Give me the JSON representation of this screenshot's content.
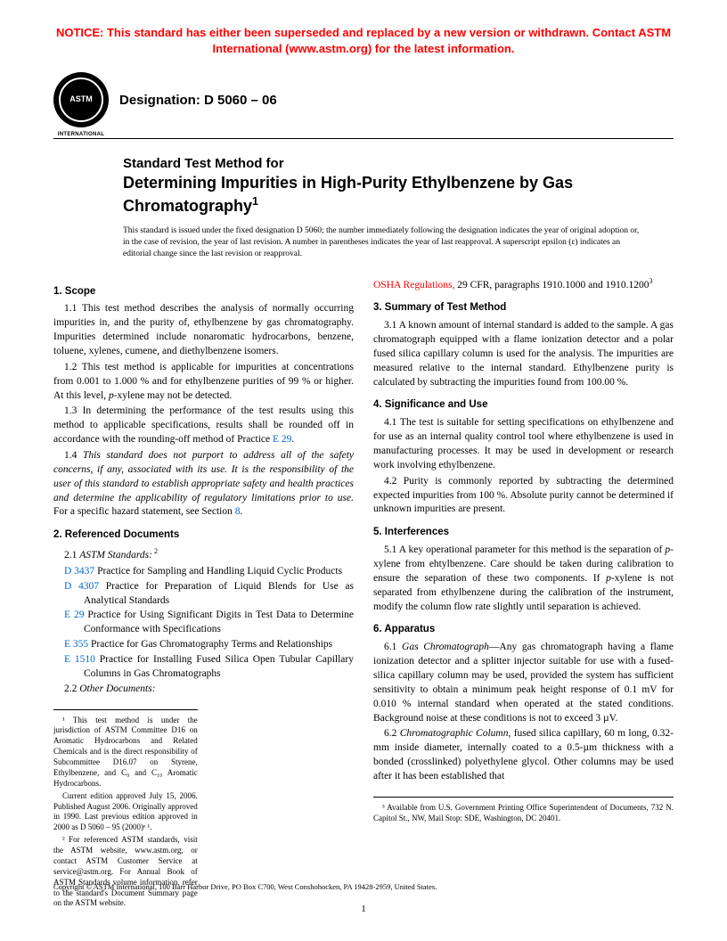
{
  "notice": "NOTICE: This standard has either been superseded and replaced by a new version or withdrawn. Contact ASTM International (www.astm.org) for the latest information.",
  "logo": {
    "top": "ASTM",
    "bottom": "INTERNATIONAL"
  },
  "designation": "Designation: D 5060 – 06",
  "title1": "Standard Test Method for",
  "title2": "Determining Impurities in High-Purity Ethylbenzene by Gas Chromatography",
  "title_sup": "1",
  "issuance": "This standard is issued under the fixed designation D 5060; the number immediately following the designation indicates the year of original adoption or, in the case of revision, the year of last revision. A number in parentheses indicates the year of last reapproval. A superscript epsilon (ε) indicates an editorial change since the last revision or reapproval.",
  "s1": {
    "head": "1. Scope",
    "p1": "1.1 This test method describes the analysis of normally occurring impurities in, and the purity of, ethylbenzene by gas chromatography. Impurities determined include nonaromatic hydrocarbons, benzene, toluene, xylenes, cumene, and diethylbenzene isomers.",
    "p2a": "1.2 This test method is applicable for impurities at concentrations from 0.001 to 1.000 % and for ethylbenzene purities of 99 % or higher. At this level, ",
    "p2i": "p",
    "p2b": "-xylene may not be detected.",
    "p3a": "1.3 In determining the performance of the test results using this method to applicable specifications, results shall be rounded off in accordance with the rounding-off method of Practice ",
    "p3link": "E 29",
    "p3b": ".",
    "p4a": "1.4 ",
    "p4i": "This standard does not purport to address all of the safety concerns, if any, associated with its use. It is the responsibility of the user of this standard to establish appropriate safety and health practices and determine the applicability of regulatory limitations prior to use.",
    "p4b": " For a specific hazard statement, see Section ",
    "p4link": "8",
    "p4c": "."
  },
  "s2": {
    "head": "2. Referenced Documents",
    "p1a": "2.1 ",
    "p1i": "ASTM Standards:",
    "p1sup": " 2",
    "refs": [
      {
        "code": "D 3437",
        "text": " Practice for Sampling and Handling Liquid Cyclic Products"
      },
      {
        "code": "D 4307",
        "text": " Practice for Preparation of Liquid Blends for Use as Analytical Standards"
      },
      {
        "code": "E 29",
        "text": " Practice for Using Significant Digits in Test Data to Determine Conformance with Specifications"
      },
      {
        "code": "E 355",
        "text": " Practice for Gas Chromatography Terms and Relationships"
      },
      {
        "code": "E 1510",
        "text": " Practice for Installing Fused Silica Open Tubular Capillary Columns in Gas Chromatographs"
      }
    ],
    "p2a": "2.2 ",
    "p2i": "Other Documents:"
  },
  "osha": {
    "link": "OSHA Regulations,",
    "rest": " 29 CFR, paragraphs 1910.1000 and 1910.1200",
    "sup": "3"
  },
  "s3": {
    "head": "3. Summary of Test Method",
    "p1": "3.1 A known amount of internal standard is added to the sample. A gas chromatograph equipped with a flame ionization detector and a polar fused silica capillary column is used for the analysis. The impurities are measured relative to the internal standard. Ethylbenzene purity is calculated by subtracting the impurities found from 100.00 %."
  },
  "s4": {
    "head": "4. Significance and Use",
    "p1": "4.1 The test is suitable for setting specifications on ethylbenzene and for use as an internal quality control tool where ethylbenzene is used in manufacturing processes. It may be used in development or research work involving ethylbenzene.",
    "p2": "4.2 Purity is commonly reported by subtracting the determined expected impurities from 100 %. Absolute purity cannot be determined if unknown impurities are present."
  },
  "s5": {
    "head": "5. Interferences",
    "p1a": "5.1 A key operational parameter for this method is the separation of ",
    "p1i1": "p",
    "p1b": "-xylene from ehtylbenzene. Care should be taken during calibration to ensure the separation of these two components. If ",
    "p1i2": "p",
    "p1c": "-xylene is not separated from ethylbenzene during the calibration of the instrument, modify the column flow rate slightly until separation is achieved."
  },
  "s6": {
    "head": "6. Apparatus",
    "p1a": "6.1 ",
    "p1i": "Gas Chromatograph",
    "p1b": "—Any gas chromatograph having a flame ionization detector and a splitter injector suitable for use with a fused-silica capillary column may be used, provided the system has sufficient sensitivity to obtain a minimum peak height response of 0.1 mV for 0.010 % internal standard when operated at the stated conditions. Background noise at these conditions is not to exceed 3 µV.",
    "p2a": "6.2 ",
    "p2i": "Chromatographic Column",
    "p2b": ", fused silica capillary, 60 m long, 0.32-mm inside diameter, internally coated to a 0.5-µm thickness with a bonded (crosslinked) polyethylene glycol. Other columns may be used after it has been established that"
  },
  "fn_left": [
    "¹ This test method is under the jurisdiction of ASTM Committee D16 on Aromatic Hydrocarbons and Related Chemicals and is the direct responsibility of Subcommittee D16.07 on Styrene, Ethylbenzene, and C₉ and C₁₀ Aromatic Hydrocarbons.",
    "Current edition approved July 15, 2006. Published August 2006. Originally approved in 1990. Last previous edition approved in 2000 as D 5060 – 95 (2000)ᵉ ¹.",
    "² For referenced ASTM standards, visit the ASTM website, www.astm.org, or contact ASTM Customer Service at service@astm.org. For Annual Book of ASTM Standards volume information, refer to the standard's Document Summary page on the ASTM website."
  ],
  "fn_right": "³ Available from U.S. Government Printing Office Superintendent of Documents, 732 N. Capitol St., NW, Mail Stop: SDE, Washington, DC 20401.",
  "copyright": "Copyright © ASTM International, 100 Barr Harbor Drive, PO Box C700, West Conshohocken, PA 19428-2959, United States.",
  "pagenum": "1"
}
